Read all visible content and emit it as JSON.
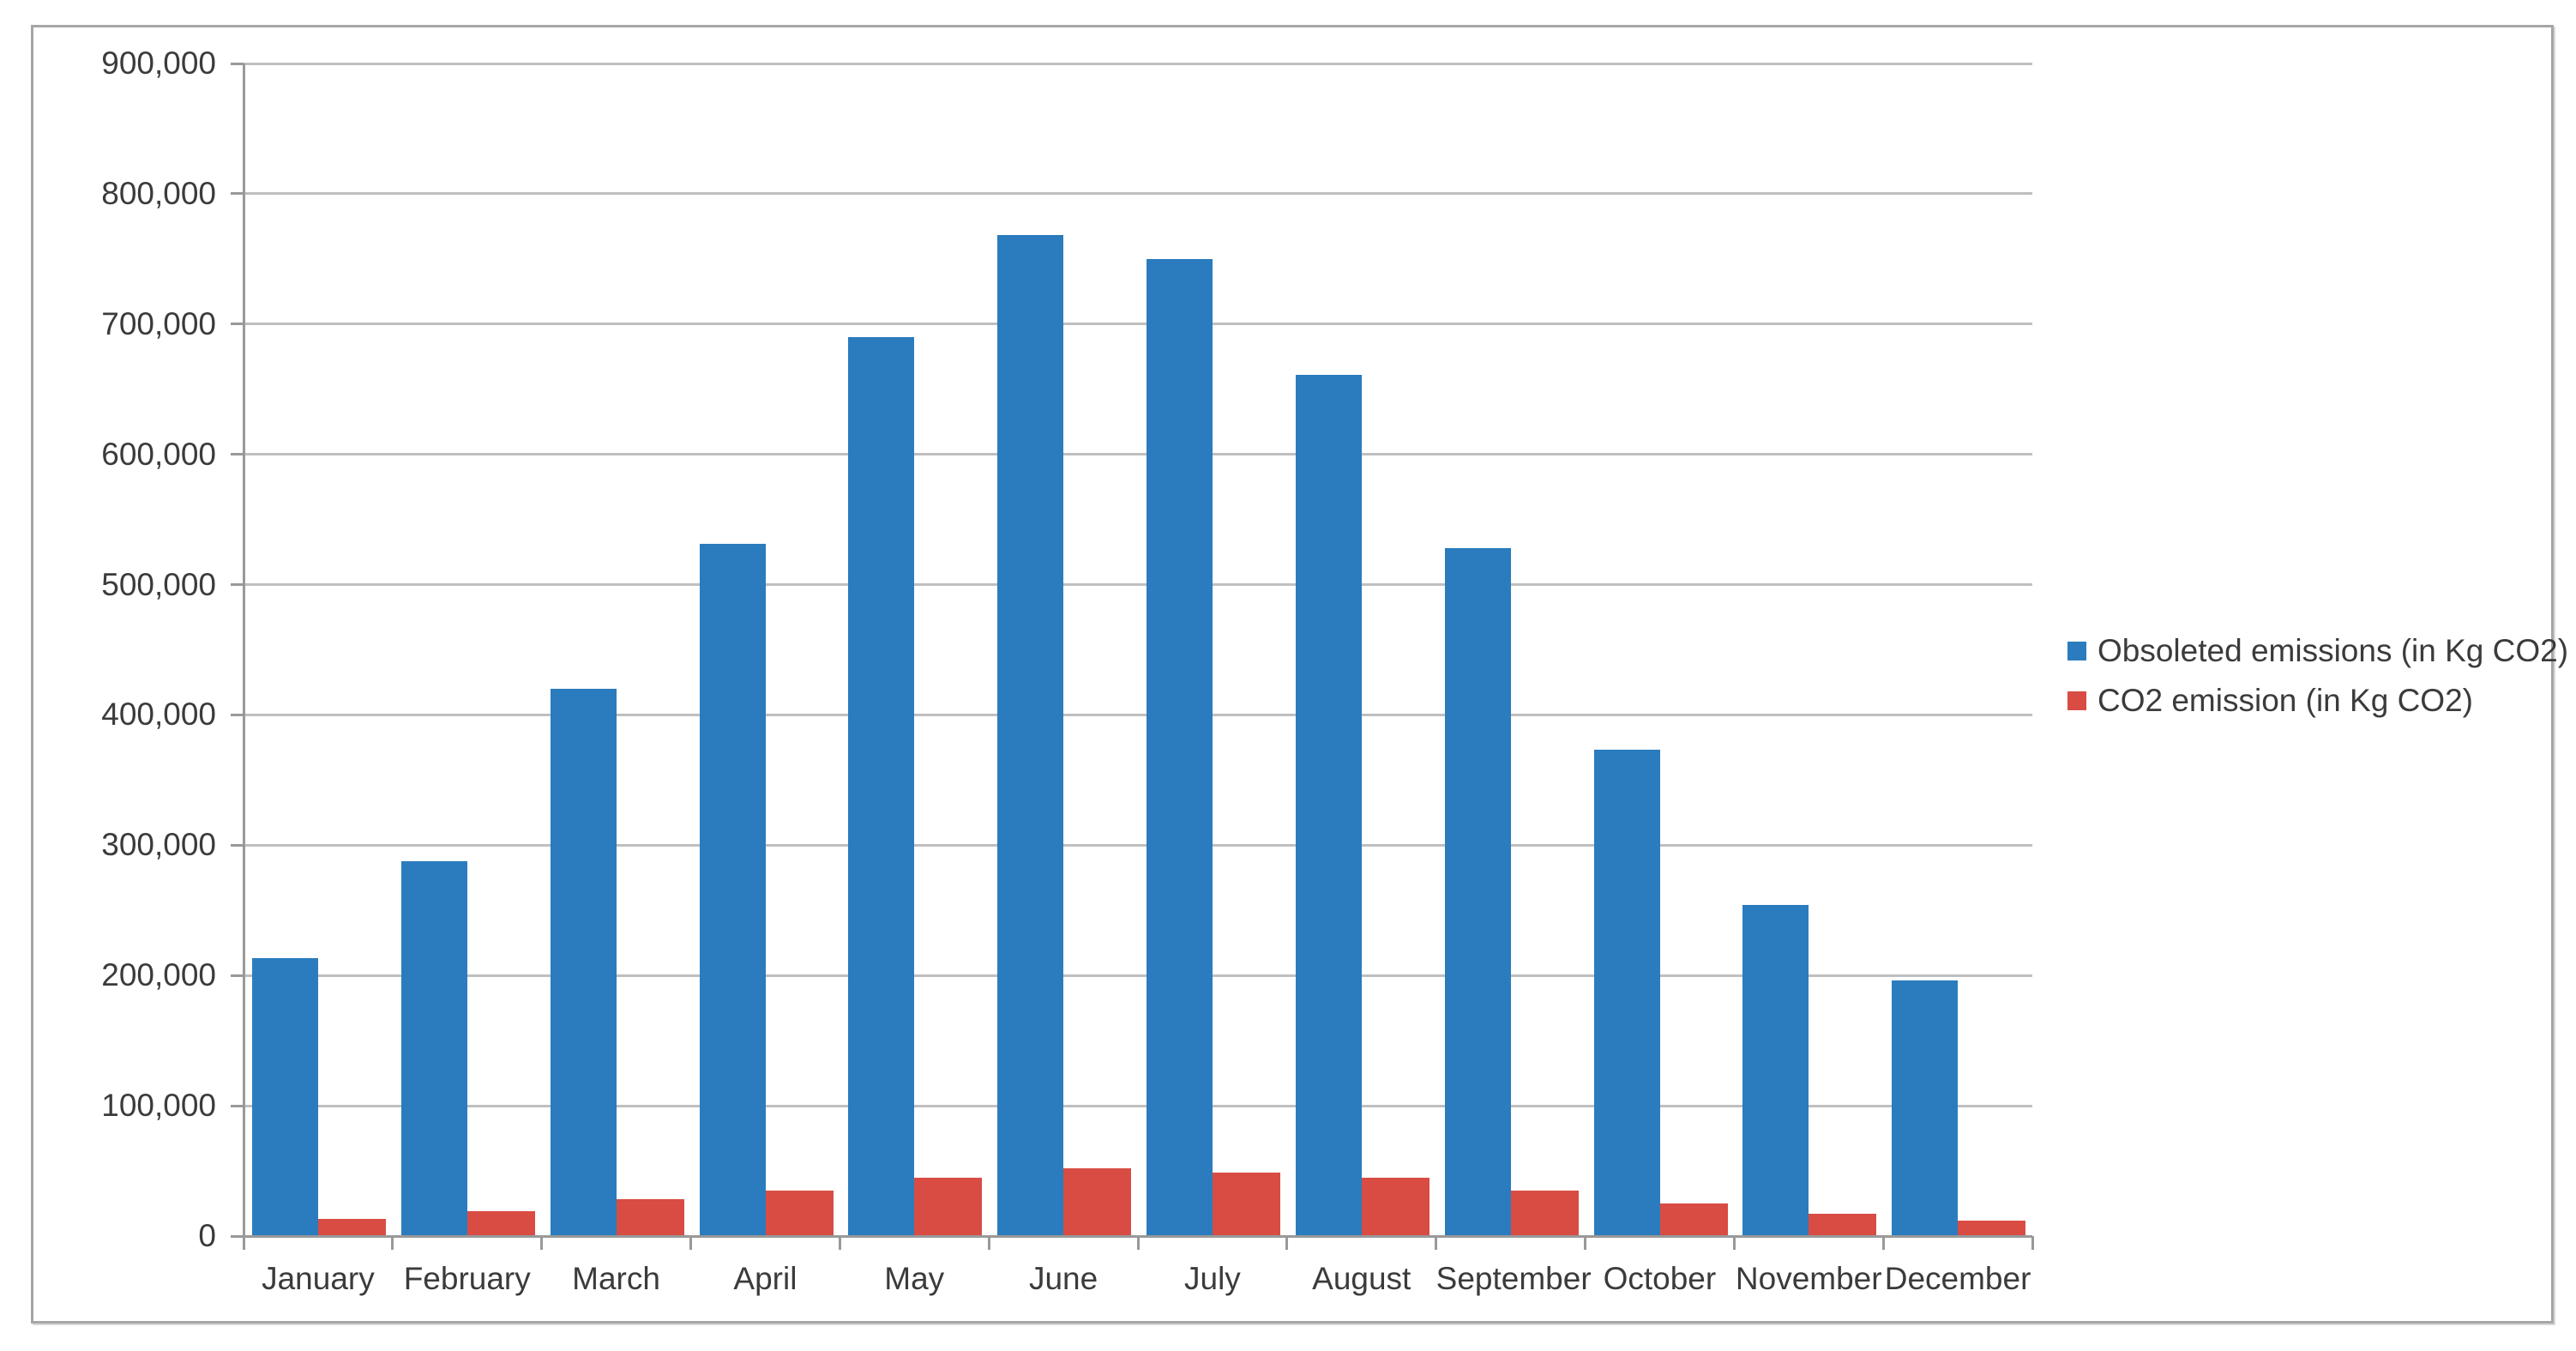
{
  "chart_data": {
    "type": "bar",
    "title": "",
    "xlabel": "",
    "ylabel": "",
    "categories": [
      "January",
      "February",
      "March",
      "April",
      "May",
      "June",
      "July",
      "August",
      "September",
      "October",
      "November",
      "December"
    ],
    "series": [
      {
        "key": "obsoleted-emissions",
        "name": "Obsoleted emissions (in Kg CO2)",
        "color": "#2a7cbe",
        "values": [
          213000,
          288000,
          420000,
          531000,
          690000,
          768000,
          750000,
          661000,
          528000,
          373000,
          254000,
          196000
        ]
      },
      {
        "key": "co2-emission",
        "name": "CO2 emission (in Kg CO2)",
        "color": "#d84c44",
        "values": [
          13000,
          19000,
          28000,
          35000,
          45000,
          52000,
          49000,
          45000,
          35000,
          25000,
          17000,
          12000
        ]
      }
    ],
    "ylim": [
      0,
      900000
    ],
    "y_tick_step": 100000,
    "y_tick_labels": [
      "0",
      "100,000",
      "200,000",
      "300,000",
      "400,000",
      "500,000",
      "600,000",
      "700,000",
      "800,000",
      "900,000"
    ],
    "grid": true,
    "legend_position": "right"
  },
  "styles": {
    "plot_background": "#ffffff",
    "frame_border": "#a6a6a6",
    "gridline": "#bfbfbf",
    "axis": "#999999",
    "text": "#3b3b3b"
  }
}
